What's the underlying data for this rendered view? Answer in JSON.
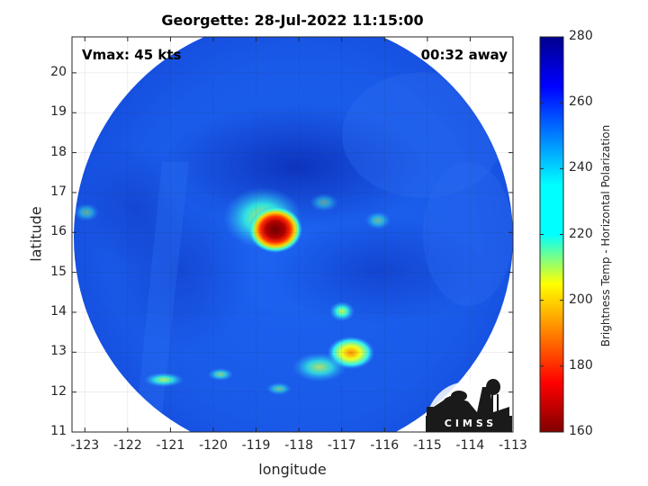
{
  "title": "Georgette: 28-Jul-2022 11:15:00",
  "annotations": {
    "vmax": "Vmax: 45 kts",
    "away": "00:32 away"
  },
  "axes": {
    "xlabel": "longitude",
    "ylabel": "latitude",
    "xlim": [
      -123.3,
      -113
    ],
    "ylim": [
      11,
      20.9
    ],
    "xticks": [
      "-123",
      "-122",
      "-121",
      "-120",
      "-119",
      "-118",
      "-117",
      "-116",
      "-115",
      "-114",
      "-113"
    ],
    "yticks": [
      "20",
      "19",
      "18",
      "17",
      "16",
      "15",
      "14",
      "13",
      "12",
      "11"
    ],
    "grid": true
  },
  "colorbar": {
    "label": "Brightness Temp - Horizontal Polarization",
    "min": 160,
    "max": 280,
    "ticks": [
      "280",
      "260",
      "240",
      "220",
      "200",
      "180",
      "160"
    ],
    "colormap": "jet"
  },
  "image_features": {
    "swath": "circular microwave swath covering roughly -122.6 to -113.4 longitude, 11.3 to 20.5 latitude",
    "storm_center": {
      "lon": -118.7,
      "lat": 16.0,
      "min_temp": 165
    },
    "colors": {
      "background_field": "#1a5ff0",
      "deep_blue": "#0a2fb4",
      "core": "#7a0000"
    }
  },
  "logo": {
    "text": "CIMSS"
  }
}
